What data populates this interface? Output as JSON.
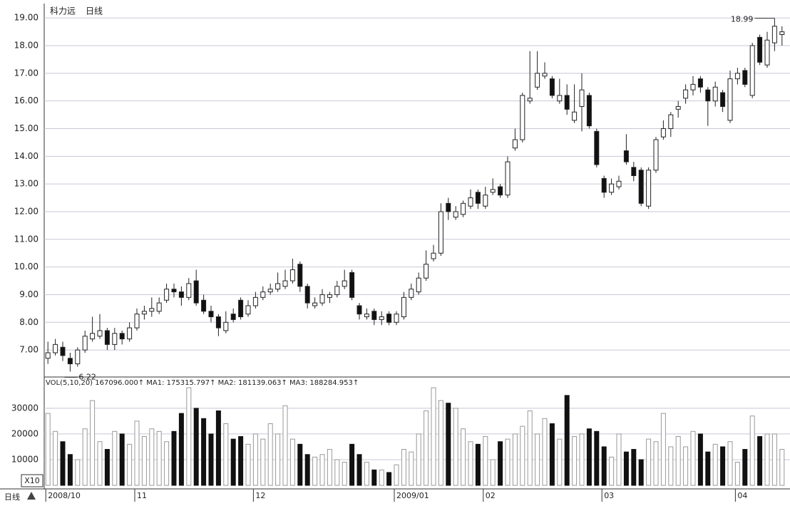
{
  "chart_data": {
    "type": "candlestick",
    "title": "科力远",
    "period": "日线",
    "volume_legend": "VOL(5,10,20) 167096.000↑ MA1: 175315.797↑ MA2: 181139.063↑ MA3: 188284.953↑",
    "volume_unit": "X10",
    "bottom_label": "日线",
    "categories": [
      "2008/10",
      null,
      null,
      null,
      null,
      null,
      null,
      null,
      null,
      null,
      null,
      null,
      "11",
      null,
      null,
      null,
      null,
      null,
      null,
      null,
      null,
      null,
      null,
      null,
      null,
      null,
      null,
      null,
      "12",
      null,
      null,
      null,
      null,
      null,
      null,
      null,
      null,
      null,
      null,
      null,
      null,
      null,
      null,
      null,
      null,
      null,
      null,
      "2009/01",
      null,
      null,
      null,
      null,
      null,
      null,
      null,
      null,
      null,
      null,
      null,
      "02",
      null,
      null,
      null,
      null,
      null,
      null,
      null,
      null,
      null,
      null,
      null,
      null,
      null,
      null,
      null,
      "03",
      null,
      null,
      null,
      null,
      null,
      null,
      null,
      null,
      null,
      null,
      null,
      null,
      null,
      null,
      null,
      null,
      null,
      "04",
      null,
      null,
      null,
      null,
      null,
      null
    ],
    "ohlc": [
      [
        6.7,
        7.3,
        6.5,
        6.9
      ],
      [
        6.9,
        7.4,
        6.8,
        7.2
      ],
      [
        7.1,
        7.3,
        6.6,
        6.8
      ],
      [
        6.7,
        6.9,
        6.22,
        6.5
      ],
      [
        6.5,
        7.1,
        6.4,
        7.0
      ],
      [
        7.0,
        7.7,
        6.9,
        7.5
      ],
      [
        7.4,
        8.2,
        7.3,
        7.6
      ],
      [
        7.5,
        8.3,
        7.4,
        7.7
      ],
      [
        7.7,
        7.8,
        7.0,
        7.2
      ],
      [
        7.2,
        7.8,
        7.0,
        7.6
      ],
      [
        7.6,
        7.7,
        7.2,
        7.4
      ],
      [
        7.4,
        8.0,
        7.3,
        7.8
      ],
      [
        7.8,
        8.5,
        7.7,
        8.3
      ],
      [
        8.3,
        8.6,
        8.1,
        8.4
      ],
      [
        8.4,
        8.9,
        8.2,
        8.5
      ],
      [
        8.4,
        8.9,
        8.3,
        8.7
      ],
      [
        8.8,
        9.4,
        8.7,
        9.2
      ],
      [
        9.2,
        9.4,
        8.9,
        9.1
      ],
      [
        9.1,
        9.3,
        8.6,
        8.9
      ],
      [
        8.9,
        9.6,
        8.8,
        9.4
      ],
      [
        9.5,
        9.9,
        8.6,
        8.7
      ],
      [
        8.8,
        9.0,
        8.3,
        8.4
      ],
      [
        8.4,
        8.6,
        8.0,
        8.2
      ],
      [
        8.2,
        8.3,
        7.5,
        7.8
      ],
      [
        7.7,
        8.4,
        7.6,
        8.0
      ],
      [
        8.3,
        8.5,
        8.0,
        8.1
      ],
      [
        8.8,
        8.9,
        8.1,
        8.2
      ],
      [
        8.3,
        8.8,
        8.2,
        8.6
      ],
      [
        8.6,
        9.1,
        8.5,
        8.9
      ],
      [
        8.9,
        9.3,
        8.8,
        9.1
      ],
      [
        9.1,
        9.4,
        9.0,
        9.2
      ],
      [
        9.2,
        9.8,
        9.1,
        9.4
      ],
      [
        9.3,
        9.9,
        9.2,
        9.5
      ],
      [
        9.5,
        10.3,
        9.4,
        9.9
      ],
      [
        10.1,
        10.2,
        9.1,
        9.3
      ],
      [
        9.3,
        9.4,
        8.5,
        8.7
      ],
      [
        8.6,
        8.9,
        8.5,
        8.7
      ],
      [
        8.7,
        9.2,
        8.6,
        9.0
      ],
      [
        8.9,
        9.1,
        8.7,
        9.0
      ],
      [
        9.0,
        9.5,
        8.9,
        9.3
      ],
      [
        9.3,
        9.9,
        9.2,
        9.5
      ],
      [
        9.8,
        9.9,
        8.8,
        8.9
      ],
      [
        8.6,
        8.7,
        8.1,
        8.3
      ],
      [
        8.2,
        8.5,
        8.1,
        8.3
      ],
      [
        8.4,
        8.5,
        7.9,
        8.1
      ],
      [
        8.1,
        8.4,
        7.9,
        8.2
      ],
      [
        8.3,
        8.4,
        7.9,
        8.0
      ],
      [
        8.0,
        8.4,
        7.9,
        8.3
      ],
      [
        8.2,
        9.1,
        8.1,
        8.9
      ],
      [
        8.9,
        9.4,
        8.8,
        9.2
      ],
      [
        9.1,
        9.8,
        9.0,
        9.6
      ],
      [
        9.6,
        10.6,
        9.5,
        10.1
      ],
      [
        10.3,
        10.8,
        10.2,
        10.5
      ],
      [
        10.5,
        12.3,
        10.4,
        12.0
      ],
      [
        12.3,
        12.5,
        11.7,
        12.0
      ],
      [
        11.8,
        12.2,
        11.7,
        12.0
      ],
      [
        11.9,
        12.4,
        11.8,
        12.3
      ],
      [
        12.2,
        12.8,
        12.1,
        12.5
      ],
      [
        12.7,
        12.8,
        12.1,
        12.3
      ],
      [
        12.2,
        12.9,
        12.1,
        12.6
      ],
      [
        12.7,
        13.2,
        12.6,
        12.8
      ],
      [
        12.9,
        13.0,
        12.5,
        12.6
      ],
      [
        12.6,
        14.0,
        12.5,
        13.8
      ],
      [
        14.3,
        15.0,
        14.2,
        14.6
      ],
      [
        14.6,
        16.3,
        14.5,
        16.2
      ],
      [
        16.0,
        17.8,
        15.9,
        16.1
      ],
      [
        16.5,
        17.8,
        16.4,
        17.0
      ],
      [
        16.9,
        17.4,
        16.8,
        17.0
      ],
      [
        16.8,
        16.9,
        16.1,
        16.2
      ],
      [
        16.0,
        16.8,
        15.9,
        16.2
      ],
      [
        16.2,
        16.6,
        15.5,
        15.7
      ],
      [
        15.3,
        16.6,
        15.2,
        15.6
      ],
      [
        15.8,
        17.0,
        14.9,
        16.4
      ],
      [
        16.2,
        16.3,
        15.0,
        15.1
      ],
      [
        14.9,
        15.0,
        13.6,
        13.7
      ],
      [
        13.2,
        13.3,
        12.5,
        12.7
      ],
      [
        12.7,
        13.2,
        12.6,
        13.0
      ],
      [
        12.9,
        13.3,
        12.8,
        13.1
      ],
      [
        14.2,
        14.8,
        13.7,
        13.8
      ],
      [
        13.6,
        13.8,
        13.1,
        13.3
      ],
      [
        13.5,
        13.6,
        12.2,
        12.3
      ],
      [
        12.2,
        13.6,
        12.1,
        13.5
      ],
      [
        13.5,
        14.7,
        13.4,
        14.6
      ],
      [
        14.7,
        15.3,
        14.6,
        15.0
      ],
      [
        15.0,
        15.6,
        14.7,
        15.5
      ],
      [
        15.7,
        16.0,
        15.4,
        15.8
      ],
      [
        16.1,
        16.6,
        15.9,
        16.4
      ],
      [
        16.4,
        16.9,
        16.2,
        16.6
      ],
      [
        16.8,
        16.9,
        16.3,
        16.5
      ],
      [
        16.4,
        16.5,
        15.1,
        16.0
      ],
      [
        16.0,
        16.7,
        15.8,
        16.5
      ],
      [
        16.3,
        16.4,
        15.6,
        15.8
      ],
      [
        15.3,
        17.1,
        15.2,
        16.8
      ],
      [
        16.8,
        17.2,
        16.6,
        17.0
      ],
      [
        17.1,
        17.2,
        16.5,
        16.6
      ],
      [
        16.2,
        18.1,
        16.1,
        18.0
      ],
      [
        18.3,
        18.4,
        17.3,
        17.4
      ],
      [
        17.3,
        18.5,
        17.2,
        18.2
      ],
      [
        18.1,
        18.99,
        17.8,
        18.7
      ],
      [
        18.4,
        18.7,
        18.0,
        18.5
      ]
    ],
    "volumes": [
      28000,
      21000,
      17000,
      12000,
      10000,
      22000,
      33000,
      17000,
      14000,
      21000,
      20000,
      16000,
      25000,
      19000,
      22000,
      21000,
      17000,
      21000,
      28000,
      38000,
      30000,
      26000,
      20000,
      29000,
      24000,
      18000,
      19000,
      16000,
      20000,
      18000,
      24000,
      20000,
      31000,
      18000,
      16000,
      12000,
      11000,
      12000,
      14000,
      10000,
      9000,
      16000,
      12000,
      9000,
      6000,
      6000,
      5000,
      8000,
      14000,
      13000,
      20000,
      29000,
      38000,
      33000,
      32000,
      30000,
      22000,
      17000,
      16000,
      19000,
      10000,
      17000,
      18000,
      20000,
      23000,
      29000,
      20000,
      26000,
      24000,
      18000,
      35000,
      19000,
      20000,
      22000,
      21000,
      15000,
      11000,
      20000,
      13000,
      14000,
      10000,
      18000,
      17000,
      28000,
      15000,
      19000,
      15000,
      21000,
      20000,
      13000,
      16000,
      15000,
      17000,
      9000,
      14000,
      27000,
      19000,
      20000,
      20000,
      14000
    ],
    "ylim": [
      6.05,
      19.52
    ],
    "yticks": [
      {
        "value": 7,
        "label": "7.00"
      },
      {
        "value": 8,
        "label": "8.00"
      },
      {
        "value": 9,
        "label": "9.00"
      },
      {
        "value": 10,
        "label": "10.00"
      },
      {
        "value": 11,
        "label": "11.00"
      },
      {
        "value": 12,
        "label": "12.00"
      },
      {
        "value": 13,
        "label": "13.00"
      },
      {
        "value": 14,
        "label": "14.00"
      },
      {
        "value": 15,
        "label": "15.00"
      },
      {
        "value": 16,
        "label": "16.00"
      },
      {
        "value": 17,
        "label": "17.00"
      },
      {
        "value": 18,
        "label": "18.00"
      },
      {
        "value": 19,
        "label": "19.00"
      }
    ],
    "vol_ylim": [
      0,
      41900
    ],
    "vol_yticks": [
      10000,
      20000,
      30000
    ],
    "grid": true,
    "up_color": "#ffffff",
    "down_color": "#111111",
    "edge_color": "#222222"
  }
}
